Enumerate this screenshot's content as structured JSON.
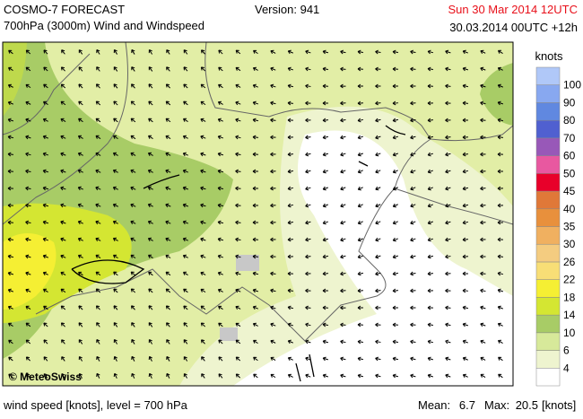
{
  "header": {
    "title": "COSMO-7 FORECAST",
    "subtitle": "700hPa (3000m) Wind and Windspeed",
    "version": "Version: 941",
    "valid_time": "Sun 30 Mar 2014 12UTC",
    "run_time": "30.03.2014 00UTC +12h"
  },
  "map": {
    "copyright": "© MeteoSwiss"
  },
  "legend": {
    "unit": "knots",
    "levels": [
      {
        "label": 4,
        "color": "#eef4cf"
      },
      {
        "label": 6,
        "color": "#d7e99a"
      },
      {
        "label": 10,
        "color": "#a8cc66"
      },
      {
        "label": 14,
        "color": "#d4e632"
      },
      {
        "label": 18,
        "color": "#f5ef33"
      },
      {
        "label": 22,
        "color": "#f8de76"
      },
      {
        "label": 26,
        "color": "#f4cc80"
      },
      {
        "label": 30,
        "color": "#f0b060"
      },
      {
        "label": 35,
        "color": "#e8903c"
      },
      {
        "label": 40,
        "color": "#e07838"
      },
      {
        "label": 45,
        "color": "#e8002a"
      },
      {
        "label": 50,
        "color": "#e858a0"
      },
      {
        "label": 60,
        "color": "#9858b8"
      },
      {
        "label": 70,
        "color": "#5060d0"
      },
      {
        "label": 80,
        "color": "#6088e0"
      },
      {
        "label": 90,
        "color": "#88a8f0"
      },
      {
        "label": 100,
        "color": "#b0c8f8"
      }
    ],
    "below_color": "#ffffff"
  },
  "footer": {
    "description": "wind speed [knots], level = 700 hPa",
    "mean_label": "Mean:",
    "mean": 6.7,
    "max_label": "Max:",
    "max": 20.5,
    "unit": "[knots]"
  }
}
